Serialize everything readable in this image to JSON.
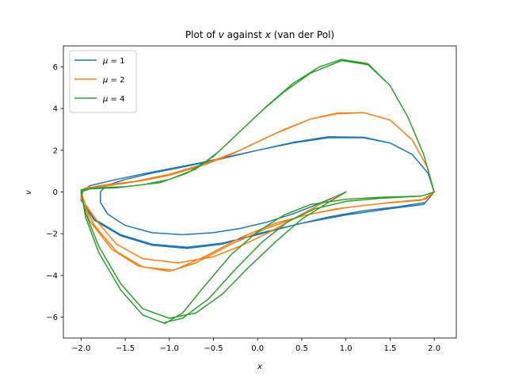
{
  "chart_data": {
    "type": "line",
    "title": "Plot of v against x (van der Pol)",
    "title_parts": {
      "prefix": "Plot of ",
      "var_y": "v",
      "mid": " against ",
      "var_x": "x",
      "suffix": " (van der Pol)"
    },
    "xlabel": "x",
    "ylabel": "v",
    "xlim": [
      -2.2,
      2.25
    ],
    "ylim": [
      -7.0,
      7.0
    ],
    "xticks": [
      -2.0,
      -1.5,
      -1.0,
      -0.5,
      0.0,
      0.5,
      1.0,
      1.5,
      2.0
    ],
    "xtick_labels": [
      "−2.0",
      "−1.5",
      "−1.0",
      "−0.5",
      "0.0",
      "0.5",
      "1.0",
      "1.5",
      "2.0"
    ],
    "yticks": [
      -6,
      -4,
      -2,
      0,
      2,
      4,
      6
    ],
    "ytick_labels": [
      "−6",
      "−4",
      "−2",
      "0",
      "2",
      "4",
      "6"
    ],
    "grid": false,
    "legend_position": "upper-left",
    "series": [
      {
        "name": "μ = 1",
        "legend_mu": "μ",
        "legend_value": "= 1",
        "color": "#1f77b4",
        "points": [
          [
            1.0,
            0.0
          ],
          [
            0.7,
            -0.55
          ],
          [
            0.4,
            -1.05
          ],
          [
            0.1,
            -1.45
          ],
          [
            -0.2,
            -1.75
          ],
          [
            -0.5,
            -1.95
          ],
          [
            -0.85,
            -2.05
          ],
          [
            -1.2,
            -1.95
          ],
          [
            -1.5,
            -1.6
          ],
          [
            -1.7,
            -1.05
          ],
          [
            -1.78,
            -0.5
          ],
          [
            -1.78,
            0.0
          ],
          [
            -1.72,
            0.3
          ],
          [
            -1.5,
            0.6
          ],
          [
            -1.2,
            0.9
          ],
          [
            -0.9,
            1.15
          ],
          [
            -0.5,
            1.5
          ],
          [
            0.0,
            2.0
          ],
          [
            0.4,
            2.35
          ],
          [
            0.8,
            2.6
          ],
          [
            1.2,
            2.6
          ],
          [
            1.5,
            2.35
          ],
          [
            1.75,
            1.8
          ],
          [
            1.93,
            0.9
          ],
          [
            2.0,
            0.0
          ],
          [
            1.9,
            -0.5
          ],
          [
            1.6,
            -0.7
          ],
          [
            1.2,
            -0.9
          ],
          [
            0.8,
            -1.2
          ],
          [
            0.4,
            -1.6
          ],
          [
            0.0,
            -2.05
          ],
          [
            -0.4,
            -2.45
          ],
          [
            -0.8,
            -2.65
          ],
          [
            -1.2,
            -2.5
          ],
          [
            -1.55,
            -2.05
          ],
          [
            -1.85,
            -1.3
          ],
          [
            -2.0,
            -0.4
          ],
          [
            -1.98,
            0.05
          ],
          [
            -1.9,
            0.3
          ],
          [
            -1.6,
            0.6
          ],
          [
            -1.2,
            0.95
          ],
          [
            -0.7,
            1.35
          ],
          [
            0.0,
            2.0
          ],
          [
            0.4,
            2.38
          ],
          [
            0.8,
            2.65
          ],
          [
            1.2,
            2.62
          ],
          [
            1.5,
            2.35
          ],
          [
            1.75,
            1.8
          ],
          [
            1.93,
            0.9
          ],
          [
            2.0,
            0.0
          ],
          [
            1.88,
            -0.6
          ],
          [
            1.5,
            -0.8
          ],
          [
            1.0,
            -1.1
          ],
          [
            0.5,
            -1.5
          ],
          [
            0.0,
            -2.0
          ],
          [
            -0.4,
            -2.5
          ],
          [
            -0.8,
            -2.7
          ],
          [
            -1.2,
            -2.55
          ],
          [
            -1.55,
            -2.1
          ],
          [
            -1.85,
            -1.35
          ],
          [
            -2.0,
            -0.4
          ],
          [
            -1.99,
            0.0
          ]
        ]
      },
      {
        "name": "μ = 2",
        "legend_mu": "μ",
        "legend_value": "= 2",
        "color": "#ff7f0e",
        "points": [
          [
            1.0,
            0.0
          ],
          [
            0.7,
            -0.6
          ],
          [
            0.4,
            -1.3
          ],
          [
            0.1,
            -2.0
          ],
          [
            -0.2,
            -2.6
          ],
          [
            -0.5,
            -3.1
          ],
          [
            -0.9,
            -3.4
          ],
          [
            -1.3,
            -3.2
          ],
          [
            -1.6,
            -2.5
          ],
          [
            -1.8,
            -1.5
          ],
          [
            -1.95,
            -0.6
          ],
          [
            -2.0,
            0.0
          ],
          [
            -1.95,
            0.2
          ],
          [
            -1.7,
            0.3
          ],
          [
            -1.3,
            0.55
          ],
          [
            -1.0,
            0.8
          ],
          [
            -0.6,
            1.3
          ],
          [
            -0.3,
            1.8
          ],
          [
            0.0,
            2.4
          ],
          [
            0.3,
            3.0
          ],
          [
            0.6,
            3.5
          ],
          [
            0.9,
            3.75
          ],
          [
            1.2,
            3.8
          ],
          [
            1.5,
            3.45
          ],
          [
            1.75,
            2.5
          ],
          [
            1.92,
            1.2
          ],
          [
            2.0,
            0.0
          ],
          [
            1.9,
            -0.35
          ],
          [
            1.5,
            -0.5
          ],
          [
            1.0,
            -0.75
          ],
          [
            0.6,
            -1.05
          ],
          [
            0.2,
            -1.5
          ],
          [
            -0.2,
            -2.2
          ],
          [
            -0.6,
            -3.1
          ],
          [
            -0.95,
            -3.75
          ],
          [
            -1.3,
            -3.6
          ],
          [
            -1.6,
            -2.85
          ],
          [
            -1.85,
            -1.6
          ],
          [
            -2.0,
            -0.3
          ],
          [
            -2.0,
            0.1
          ],
          [
            -1.8,
            0.3
          ],
          [
            -1.4,
            0.5
          ],
          [
            -1.0,
            0.85
          ],
          [
            -0.6,
            1.35
          ],
          [
            -0.2,
            2.0
          ],
          [
            0.2,
            2.8
          ],
          [
            0.6,
            3.5
          ],
          [
            0.9,
            3.78
          ],
          [
            1.2,
            3.8
          ],
          [
            1.5,
            3.45
          ],
          [
            1.75,
            2.5
          ],
          [
            1.92,
            1.2
          ],
          [
            2.0,
            0.0
          ],
          [
            1.85,
            -0.4
          ],
          [
            1.4,
            -0.55
          ],
          [
            0.9,
            -0.8
          ],
          [
            0.5,
            -1.15
          ],
          [
            0.1,
            -1.75
          ],
          [
            -0.3,
            -2.5
          ],
          [
            -0.7,
            -3.4
          ],
          [
            -1.0,
            -3.8
          ],
          [
            -1.35,
            -3.55
          ],
          [
            -1.65,
            -2.75
          ],
          [
            -1.9,
            -1.4
          ],
          [
            -2.0,
            -0.2
          ]
        ]
      },
      {
        "name": "μ = 4",
        "legend_mu": "μ",
        "legend_value": "= 4",
        "color": "#2ca02c",
        "points": [
          [
            1.0,
            0.0
          ],
          [
            0.8,
            -0.5
          ],
          [
            0.5,
            -1.3
          ],
          [
            0.2,
            -2.4
          ],
          [
            -0.1,
            -3.6
          ],
          [
            -0.4,
            -4.9
          ],
          [
            -0.7,
            -5.8
          ],
          [
            -1.0,
            -6.05
          ],
          [
            -1.3,
            -5.6
          ],
          [
            -1.55,
            -4.4
          ],
          [
            -1.8,
            -2.6
          ],
          [
            -1.95,
            -1.0
          ],
          [
            -2.0,
            0.0
          ],
          [
            -1.9,
            0.15
          ],
          [
            -1.6,
            0.2
          ],
          [
            -1.3,
            0.35
          ],
          [
            -1.0,
            0.6
          ],
          [
            -0.7,
            1.1
          ],
          [
            -0.45,
            1.9
          ],
          [
            -0.2,
            2.9
          ],
          [
            0.05,
            3.9
          ],
          [
            0.3,
            4.8
          ],
          [
            0.6,
            5.7
          ],
          [
            0.95,
            6.3
          ],
          [
            1.25,
            6.1
          ],
          [
            1.5,
            5.1
          ],
          [
            1.7,
            3.6
          ],
          [
            1.88,
            1.8
          ],
          [
            2.0,
            0.0
          ],
          [
            1.85,
            -0.2
          ],
          [
            1.4,
            -0.25
          ],
          [
            1.0,
            -0.35
          ],
          [
            0.6,
            -0.6
          ],
          [
            0.3,
            -1.1
          ],
          [
            0.0,
            -1.9
          ],
          [
            -0.3,
            -3.0
          ],
          [
            -0.6,
            -4.5
          ],
          [
            -0.85,
            -5.8
          ],
          [
            -1.05,
            -6.3
          ],
          [
            -1.3,
            -5.9
          ],
          [
            -1.55,
            -4.7
          ],
          [
            -1.8,
            -2.9
          ],
          [
            -1.95,
            -1.2
          ],
          [
            -2.0,
            0.1
          ],
          [
            -1.85,
            0.2
          ],
          [
            -1.5,
            0.25
          ],
          [
            -1.1,
            0.45
          ],
          [
            -0.8,
            0.9
          ],
          [
            -0.5,
            1.7
          ],
          [
            -0.2,
            2.9
          ],
          [
            0.1,
            4.1
          ],
          [
            0.4,
            5.2
          ],
          [
            0.7,
            6.0
          ],
          [
            0.95,
            6.35
          ],
          [
            1.25,
            6.15
          ],
          [
            1.5,
            5.1
          ],
          [
            1.7,
            3.6
          ],
          [
            1.88,
            1.8
          ],
          [
            2.0,
            0.0
          ],
          [
            1.85,
            -0.2
          ],
          [
            1.4,
            -0.3
          ],
          [
            1.0,
            -0.45
          ],
          [
            0.65,
            -0.8
          ],
          [
            0.35,
            -1.4
          ],
          [
            0.05,
            -2.4
          ],
          [
            -0.25,
            -3.7
          ],
          [
            -0.55,
            -5.1
          ],
          [
            -0.85,
            -6.05
          ],
          [
            -1.05,
            -6.25
          ]
        ]
      }
    ]
  }
}
